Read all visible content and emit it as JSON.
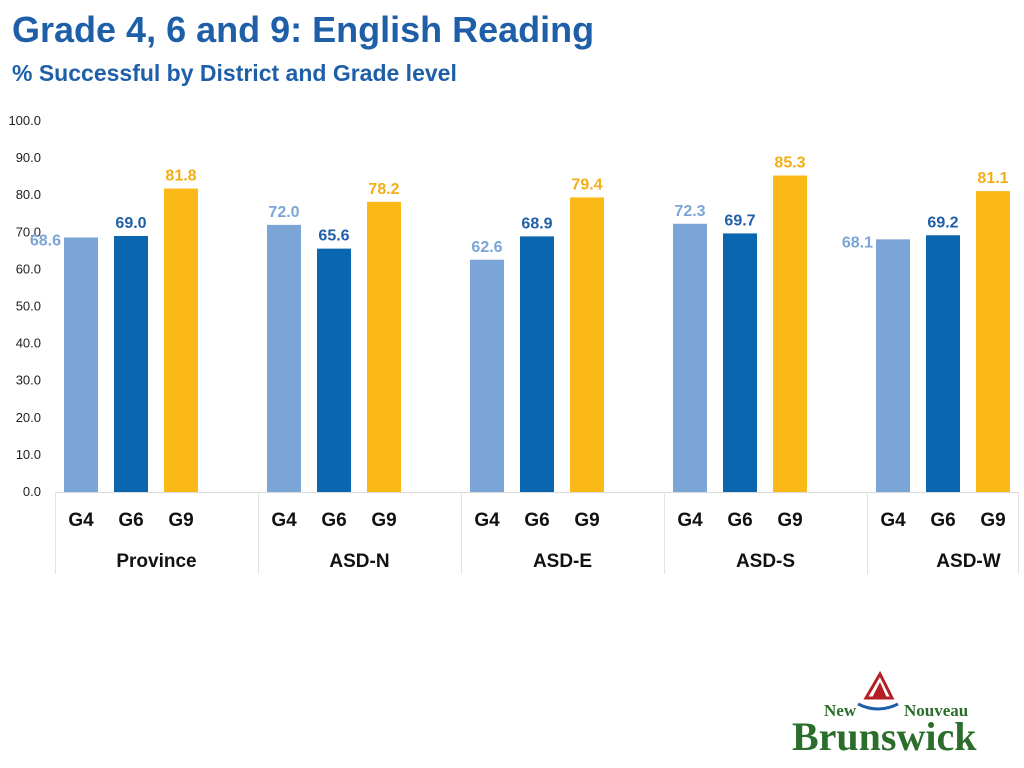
{
  "header": {
    "title": "Grade 4, 6 and 9: English Reading",
    "subtitle": "% Successful by District and Grade level"
  },
  "logo": {
    "line1_left": "New",
    "line1_right": "Nouveau",
    "line2": "Brunswick"
  },
  "colors": {
    "g4": "#7aa5d6",
    "g6": "#0a66ae",
    "g9": "#fbb917",
    "title": "#1f5fa8",
    "label_g4": "#7aa5d6",
    "label_g6": "#1f5fa8",
    "label_g9": "#f2ad17"
  },
  "chart_data": {
    "type": "bar",
    "groups": [
      "Province",
      "ASD-N",
      "ASD-E",
      "ASD-S",
      "ASD-W"
    ],
    "subcategories": [
      "G4",
      "G6",
      "G9"
    ],
    "values": [
      [
        68.6,
        69.0,
        81.8
      ],
      [
        72.0,
        65.6,
        78.2
      ],
      [
        62.6,
        68.9,
        79.4
      ],
      [
        72.3,
        69.7,
        85.3
      ],
      [
        68.1,
        69.2,
        81.1
      ]
    ],
    "value_labels": [
      [
        "68.6",
        "69.0",
        "81.8"
      ],
      [
        "72.0",
        "65.6",
        "78.2"
      ],
      [
        "62.6",
        "68.9",
        "79.4"
      ],
      [
        "72.3",
        "69.7",
        "85.3"
      ],
      [
        "68.1",
        "69.2",
        "81.1"
      ]
    ],
    "ylim": [
      0,
      100
    ],
    "yticks": [
      "0.0",
      "10.0",
      "20.0",
      "30.0",
      "40.0",
      "50.0",
      "60.0",
      "70.0",
      "80.0",
      "90.0",
      "100.0"
    ],
    "grid": false,
    "legend": "none"
  }
}
